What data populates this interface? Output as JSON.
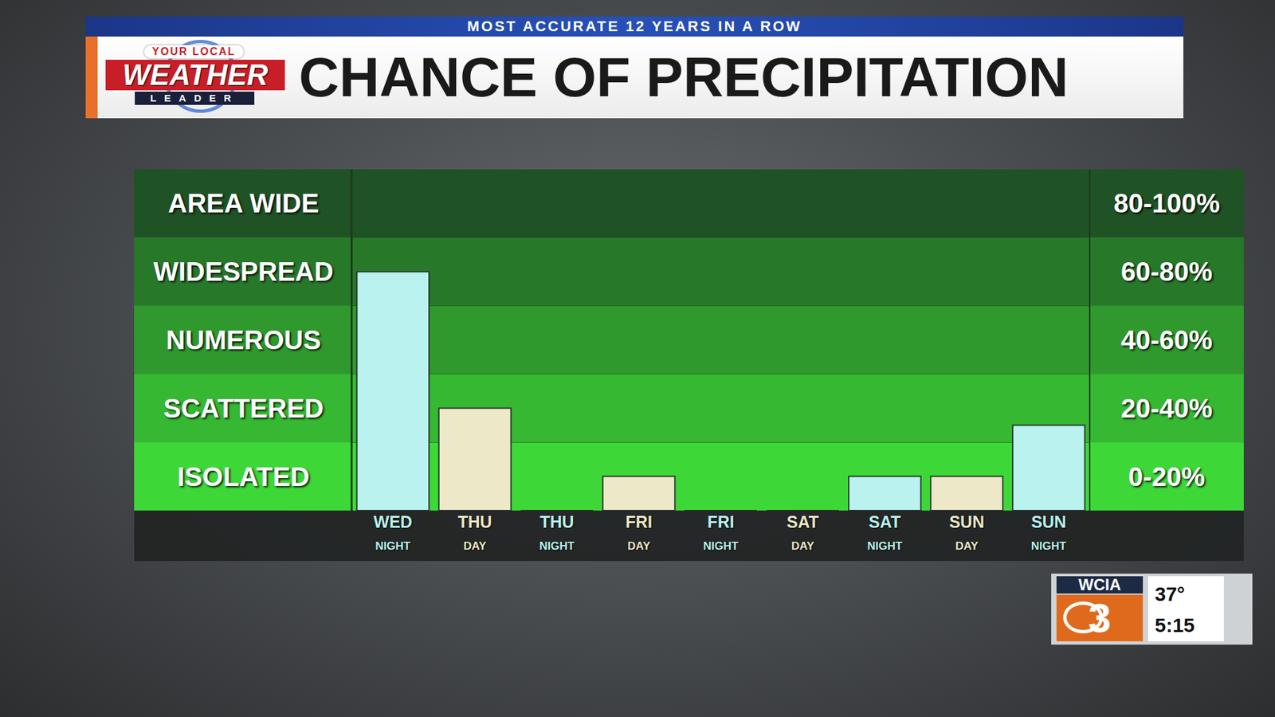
{
  "banner": "MOST ACCURATE 12 YEARS IN A ROW",
  "logo": {
    "top": "YOUR LOCAL",
    "middle": "WEATHER",
    "bottom": "LEADER"
  },
  "station": {
    "call_sign": "WCIA",
    "channel": "3",
    "temperature": "37°",
    "time": "5:15"
  },
  "chart_data": {
    "type": "bar",
    "title": "CHANCE OF PRECIPITATION",
    "categories": [
      "WED NIGHT",
      "THU DAY",
      "THU NIGHT",
      "FRI DAY",
      "FRI NIGHT",
      "SAT DAY",
      "SAT NIGHT",
      "SUN DAY",
      "SUN NIGHT"
    ],
    "values": [
      70,
      30,
      0,
      10,
      0,
      0,
      10,
      10,
      25
    ],
    "colors": [
      "#b9f2ef",
      "#ece8c8",
      "#b9f2ef",
      "#ece8c8",
      "#b9f2ef",
      "#ece8c8",
      "#b9f2ef",
      "#ece8c8",
      "#b9f2ef"
    ],
    "ylim": [
      0,
      100
    ],
    "yticks": [
      0,
      20,
      40,
      60,
      80,
      100
    ],
    "grid": true,
    "tick_labels": "x",
    "bands": [
      {
        "from": 80,
        "to": 100,
        "label": "AREA WIDE",
        "range_label": "80-100%"
      },
      {
        "from": 60,
        "to": 80,
        "label": "WIDESPREAD",
        "range_label": "60-80%"
      },
      {
        "from": 40,
        "to": 60,
        "label": "NUMEROUS",
        "range_label": "40-60%"
      },
      {
        "from": 20,
        "to": 40,
        "label": "SCATTERED",
        "range_label": "20-40%"
      },
      {
        "from": 0,
        "to": 20,
        "label": "ISOLATED",
        "range_label": "0-20%"
      }
    ]
  }
}
